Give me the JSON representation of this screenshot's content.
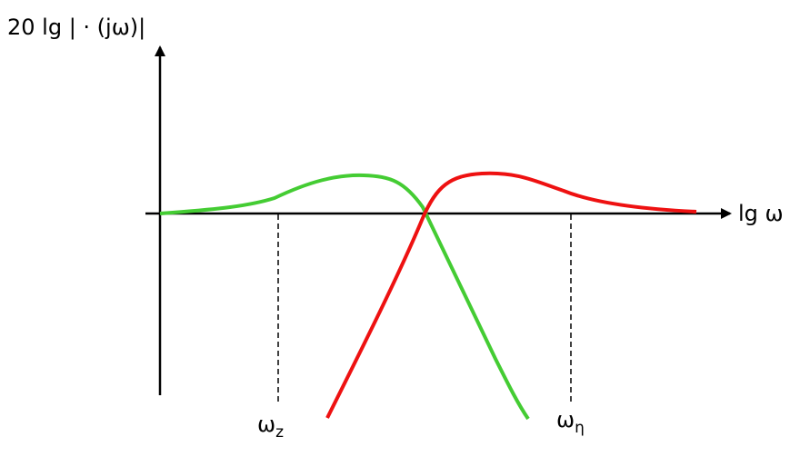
{
  "y_axis": {
    "label": "20 lg | · (jω)|"
  },
  "x_axis": {
    "label": "lg ω"
  },
  "markers": [
    {
      "symbol": "ω",
      "subscript": "z"
    },
    {
      "symbol": "ω",
      "subscript": "η"
    }
  ]
}
